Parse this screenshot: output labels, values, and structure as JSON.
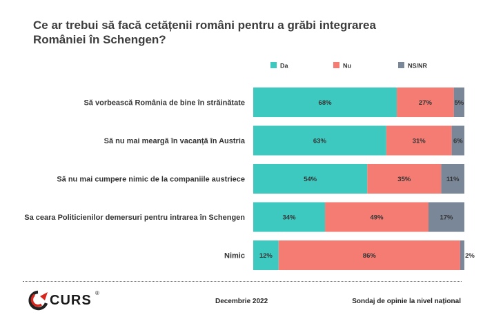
{
  "chart_data": {
    "type": "bar",
    "orientation": "horizontal",
    "stacked": true,
    "title": "Ce ar trebui să facă cetățenii români pentru a grăbi integrarea României în Schengen?",
    "categories": [
      "Să vorbească România de bine în străinătate",
      "Să nu mai meargă în vacanță în Austria",
      "Să nu mai cumpere nimic de la companiile austriece",
      "Sa ceara Politicienilor demersuri pentru intrarea în Schengen",
      "Nimic"
    ],
    "series": [
      {
        "name": "Da",
        "color": "#3ec9c0",
        "values": [
          68,
          63,
          54,
          34,
          12
        ]
      },
      {
        "name": "Nu",
        "color": "#f47c73",
        "values": [
          27,
          31,
          35,
          49,
          86
        ]
      },
      {
        "name": "NS/NR",
        "color": "#7a8798",
        "values": [
          5,
          6,
          11,
          17,
          2
        ]
      }
    ],
    "value_suffix": "%",
    "xlim": [
      0,
      100
    ],
    "grid": false,
    "legend": "top"
  },
  "footer": {
    "logo_text": "CURS",
    "logo_reg": "®",
    "date": "Decembrie 2022",
    "source": "Sondaj de opinie la nivel național"
  }
}
